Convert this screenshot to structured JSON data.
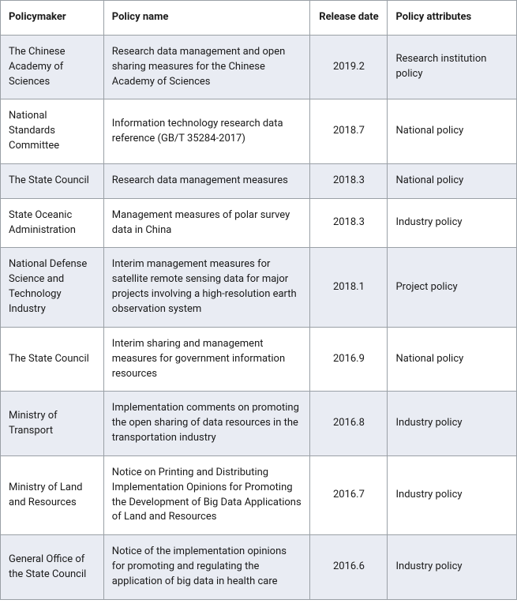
{
  "table": {
    "columns": [
      {
        "label": "Policymaker",
        "align": "left"
      },
      {
        "label": "Policy name",
        "align": "left"
      },
      {
        "label": "Release date",
        "align": "center"
      },
      {
        "label": "Policy attributes",
        "align": "left"
      }
    ],
    "header_bg": "#ffffff",
    "row_bg_odd": "#e9ecf3",
    "row_bg_even": "#ffffff",
    "border_color": "#9aa0a6",
    "font_size": 13,
    "rows": [
      {
        "policymaker": "The Chinese Academy of Sciences",
        "policy_name": "Research data management and open sharing measures for the Chinese Academy of Sciences",
        "release_date": "2019.2",
        "attributes": "Research institution policy"
      },
      {
        "policymaker": "National Standards Committee",
        "policy_name": "Information technology research data reference (GB/T 35284-2017)",
        "release_date": "2018.7",
        "attributes": "National policy"
      },
      {
        "policymaker": "The State Council",
        "policy_name": "Research data management measures",
        "release_date": "2018.3",
        "attributes": "National policy"
      },
      {
        "policymaker": "State Oceanic Administration",
        "policy_name": "Management measures of polar survey data in China",
        "release_date": "2018.3",
        "attributes": "Industry policy"
      },
      {
        "policymaker": "National Defense Science and Technology Industry",
        "policy_name": "Interim management measures for satellite remote sensing data for major projects involving a high-resolution earth observation system",
        "release_date": "2018.1",
        "attributes": "Project policy"
      },
      {
        "policymaker": "The State Council",
        "policy_name": "Interim sharing and management measures for government information resources",
        "release_date": "2016.9",
        "attributes": "National policy"
      },
      {
        "policymaker": "Ministry of Transport",
        "policy_name": "Implementation comments on promoting the open sharing of data resources in the transportation industry",
        "release_date": "2016.8",
        "attributes": "Industry policy"
      },
      {
        "policymaker": "Ministry of Land and Resources",
        "policy_name": "Notice on Printing and Distributing Implementation Opinions for Promoting the Development of Big Data Applications of Land and Resources",
        "release_date": "2016.7",
        "attributes": "Industry policy"
      },
      {
        "policymaker": "General Office of the State Council",
        "policy_name": "Notice of the implementation opinions for promoting and regulating the application of big data in health care",
        "release_date": "2016.6",
        "attributes": "Industry policy"
      }
    ]
  }
}
